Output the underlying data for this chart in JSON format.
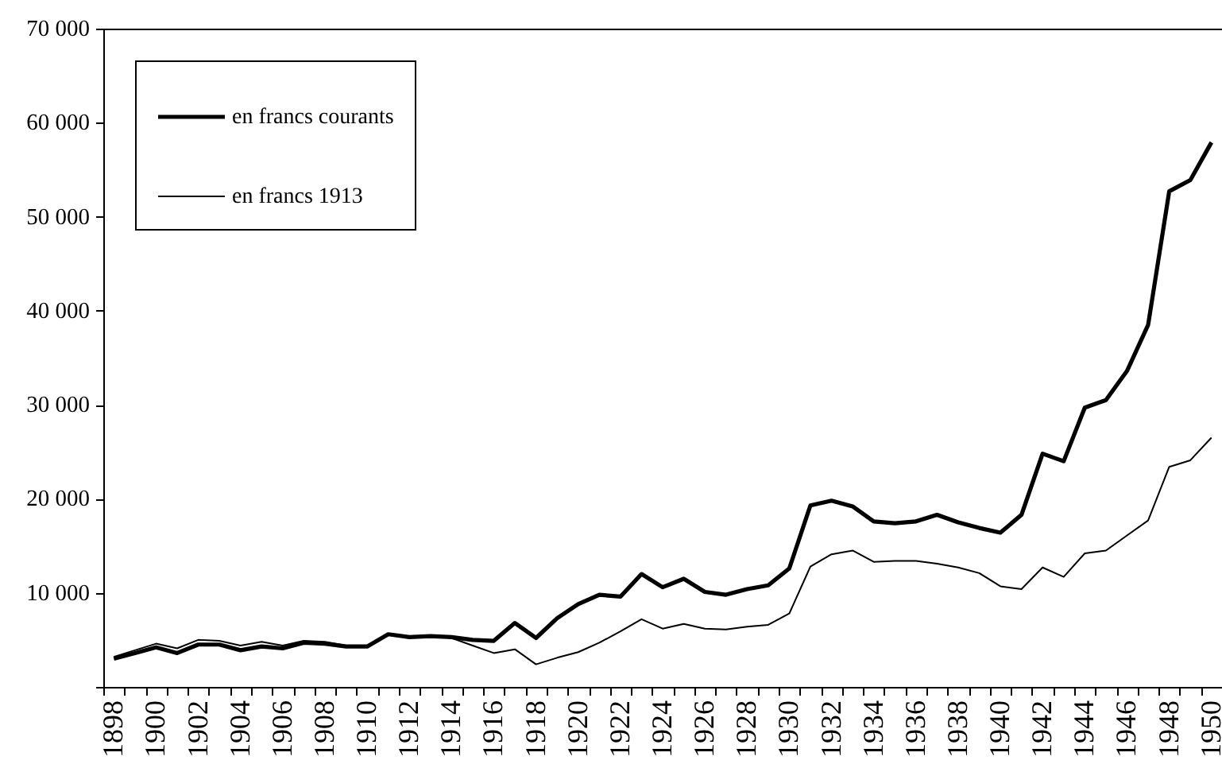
{
  "chart_data": {
    "type": "line",
    "categories": [
      "1898",
      null,
      "1900",
      null,
      "1902",
      null,
      "1904",
      null,
      "1906",
      null,
      "1908",
      null,
      "1910",
      null,
      "1912",
      null,
      "1914",
      null,
      "1916",
      null,
      "1918",
      null,
      "1920",
      null,
      "1922",
      null,
      "1924",
      null,
      "1926",
      null,
      "1928",
      null,
      "1930",
      null,
      "1932",
      null,
      "1934",
      null,
      "1936",
      null,
      "1938",
      null,
      "1940",
      null,
      "1942",
      null,
      "1944",
      null,
      "1946",
      null,
      "1948",
      null,
      "1950"
    ],
    "series": [
      {
        "name": "en francs courants",
        "color": "#000000",
        "values": [
          3000,
          3600,
          4200,
          3600,
          4500,
          4500,
          3900,
          4300,
          4100,
          4700,
          4600,
          4300,
          4300,
          5600,
          5300,
          5400,
          5300,
          5000,
          4900,
          6800,
          5200,
          7300,
          8800,
          9800,
          9600,
          12000,
          10600,
          11500,
          10100,
          9800,
          10400,
          10800,
          12600,
          19300,
          19800,
          19200,
          17600,
          17400,
          17600,
          18300,
          17500,
          16900,
          16400,
          18300,
          24800,
          24000,
          29700,
          30500,
          33600,
          38500,
          52700,
          53900,
          57900
        ]
      },
      {
        "name": "en francs 1913",
        "color": "#000000",
        "values": [
          3200,
          3900,
          4600,
          4100,
          5000,
          4900,
          4400,
          4800,
          4400,
          4900,
          4800,
          4400,
          4400,
          5600,
          5400,
          5400,
          5200,
          4400,
          3600,
          4000,
          2400,
          3100,
          3700,
          4700,
          5900,
          7200,
          6200,
          6700,
          6200,
          6100,
          6400,
          6600,
          7800,
          12800,
          14100,
          14500,
          13300,
          13400,
          13400,
          13100,
          12700,
          12100,
          10700,
          10400,
          12700,
          11700,
          14200,
          14500,
          16100,
          17700,
          23400,
          24100,
          26500
        ]
      }
    ],
    "ylim": [
      0,
      70000
    ],
    "yticks": [
      {
        "value": 0,
        "label": null
      },
      {
        "value": 10000,
        "label": "10 000"
      },
      {
        "value": 20000,
        "label": "20 000"
      },
      {
        "value": 30000,
        "label": "30 000"
      },
      {
        "value": 40000,
        "label": "40 000"
      },
      {
        "value": 50000,
        "label": "50 000"
      },
      {
        "value": 60000,
        "label": "60 000"
      },
      {
        "value": 70000,
        "label": "70 000"
      }
    ],
    "legend": "top left",
    "grid": false
  }
}
